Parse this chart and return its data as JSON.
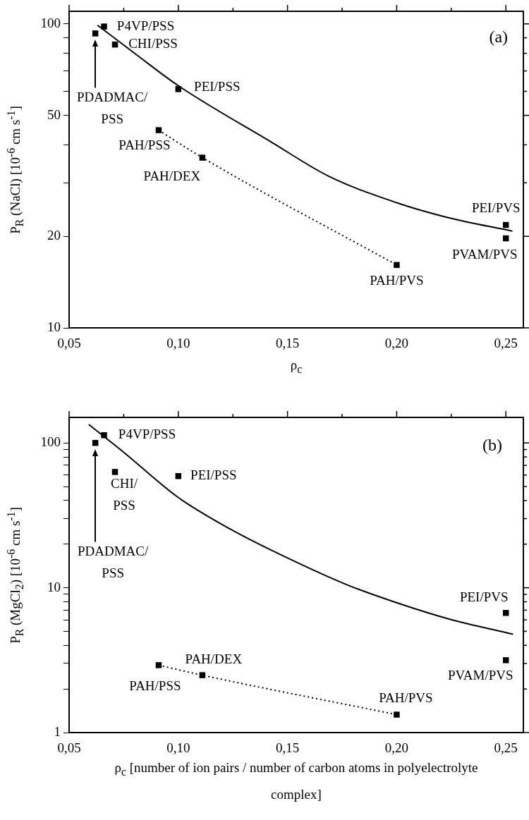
{
  "chart_data": [
    {
      "type": "scatter",
      "xlabel": "ρ$_{c}$",
      "ylabel": "P$_{R}$ (NaCl) [10$^{-6}$ cm s$^{-1}$]",
      "log": "y",
      "xlim": [
        0.05,
        0.258
      ],
      "ylim": [
        10,
        110
      ],
      "xticks": [
        {
          "value": 0.05,
          "label": "0,05"
        },
        {
          "value": 0.075,
          "label": null
        },
        {
          "value": 0.1,
          "label": "0,10"
        },
        {
          "value": 0.125,
          "label": null
        },
        {
          "value": 0.15,
          "label": "0,15"
        },
        {
          "value": 0.175,
          "label": null
        },
        {
          "value": 0.2,
          "label": "0,20"
        },
        {
          "value": 0.225,
          "label": null
        },
        {
          "value": 0.25,
          "label": "0,25"
        }
      ],
      "yticks": [
        10,
        20,
        {
          "value": 30,
          "label": null
        },
        {
          "value": 40,
          "label": null
        },
        50,
        {
          "value": 60,
          "label": null
        },
        {
          "value": 70,
          "label": null
        },
        {
          "value": 80,
          "label": null
        },
        {
          "value": 90,
          "label": null
        },
        100
      ],
      "series": [
        {
          "type": "scatter",
          "marker": "square",
          "color": "#000000",
          "x": [
            0.062,
            0.066,
            0.071,
            0.1,
            0.091,
            0.111,
            0.2,
            0.25,
            0.25
          ],
          "values": [
            93,
            98,
            85.5,
            61,
            44.7,
            36.3,
            16.1,
            21.8,
            19.7
          ]
        },
        {
          "type": "line",
          "marker": "none",
          "line_style": "solid",
          "color": "#000000",
          "x": [
            0.063,
            0.081,
            0.1,
            0.142,
            0.169,
            0.2,
            0.223,
            0.253
          ],
          "values": [
            99,
            79,
            62.6,
            41.1,
            31.5,
            25.8,
            23.1,
            20.8
          ]
        },
        {
          "type": "line",
          "marker": "none",
          "line_style": "dotted",
          "color": "#000000",
          "x": [
            0.091,
            0.111,
            0.2
          ],
          "values": [
            44.7,
            36.3,
            16.1
          ]
        }
      ],
      "annotations": [
        {
          "text": "P4VP/PSS",
          "x": 0.066,
          "y": 98
        },
        {
          "text": "CHI/PSS",
          "x": 0.071,
          "y": 85.5
        },
        {
          "text": "PEI/PSS",
          "x": 0.1,
          "y": 61
        },
        "PDADMAC/\nPSS",
        {
          "text": "PAH/PSS",
          "x": 0.091,
          "y": 44.7
        },
        {
          "text": "PAH/DEX",
          "x": 0.111,
          "y": 36.3
        },
        {
          "text": "PAH/PVS",
          "x": 0.2,
          "y": 16.1
        },
        {
          "text": "PEI/PVS",
          "x": 0.25,
          "y": 21.8
        },
        {
          "text": "PVAM/PVS",
          "x": 0.25,
          "y": 19.7
        },
        "(a)"
      ]
    },
    {
      "type": "scatter",
      "xlabel": "ρ$_{c}$ [number of ion pairs / number of carbon atoms in polyelectrolyte complex]",
      "ylabel": "P$_{R}$ (MgCl$_{2}$) [10$^{-6}$ cm s$^{-1}$]",
      "log": "y",
      "xlim": [
        0.05,
        0.258
      ],
      "ylim": [
        1,
        150
      ],
      "xticks": [
        {
          "value": 0.05,
          "label": "0,05"
        },
        {
          "value": 0.075,
          "label": null
        },
        {
          "value": 0.1,
          "label": "0,10"
        },
        {
          "value": 0.125,
          "label": null
        },
        {
          "value": 0.15,
          "label": "0,15"
        },
        {
          "value": 0.175,
          "label": null
        },
        {
          "value": 0.2,
          "label": "0,20"
        },
        {
          "value": 0.225,
          "label": null
        },
        {
          "value": 0.25,
          "label": "0,25"
        }
      ],
      "yticks": [
        1,
        {
          "value": 2,
          "label": null
        },
        {
          "value": 3,
          "label": null
        },
        {
          "value": 4,
          "label": null
        },
        {
          "value": 5,
          "label": null
        },
        {
          "value": 6,
          "label": null
        },
        {
          "value": 7,
          "label": null
        },
        {
          "value": 8,
          "label": null
        },
        {
          "value": 9,
          "label": null
        },
        10,
        {
          "value": 20,
          "label": null
        },
        {
          "value": 30,
          "label": null
        },
        {
          "value": 40,
          "label": null
        },
        {
          "value": 50,
          "label": null
        },
        {
          "value": 60,
          "label": null
        },
        {
          "value": 70,
          "label": null
        },
        {
          "value": 80,
          "label": null
        },
        {
          "value": 90,
          "label": null
        },
        100
      ],
      "series": [
        {
          "type": "scatter",
          "marker": "square",
          "color": "#000000",
          "x": [
            0.062,
            0.066,
            0.071,
            0.1,
            0.091,
            0.111,
            0.2,
            0.25,
            0.25
          ],
          "values": [
            100,
            113,
            63,
            59,
            2.92,
            2.49,
            1.33,
            6.7,
            3.16
          ]
        },
        {
          "type": "line",
          "marker": "none",
          "line_style": "solid",
          "color": "#000000",
          "x": [
            0.059,
            0.0752,
            0.0995,
            0.1238,
            0.148,
            0.1778,
            0.198,
            0.2237,
            0.2533
          ],
          "values": [
            134,
            85.7,
            42.5,
            25.4,
            16.6,
            10.4,
            8.07,
            6.1,
            4.78
          ]
        },
        {
          "type": "line",
          "marker": "none",
          "line_style": "dotted",
          "color": "#000000",
          "x": [
            0.091,
            0.111,
            0.2
          ],
          "values": [
            2.92,
            2.49,
            1.33
          ]
        }
      ],
      "annotations": [
        {
          "text": "P4VP/PSS",
          "x": 0.066,
          "y": 113
        },
        {
          "text": "CHI/\nPSS",
          "x": 0.071,
          "y": 63
        },
        {
          "text": "PEI/PSS",
          "x": 0.1,
          "y": 59
        },
        "PDADMAC/\nPSS",
        {
          "text": "PAH/PSS",
          "x": 0.091,
          "y": 2.92
        },
        {
          "text": "PAH/DEX",
          "x": 0.111,
          "y": 2.49
        },
        {
          "text": "PAH/PVS",
          "x": 0.2,
          "y": 1.33
        },
        {
          "text": "PEI/PVS",
          "x": 0.25,
          "y": 6.7
        },
        {
          "text": "PVAM/PVS",
          "x": 0.25,
          "y": 3.16
        },
        "(b)"
      ]
    }
  ]
}
